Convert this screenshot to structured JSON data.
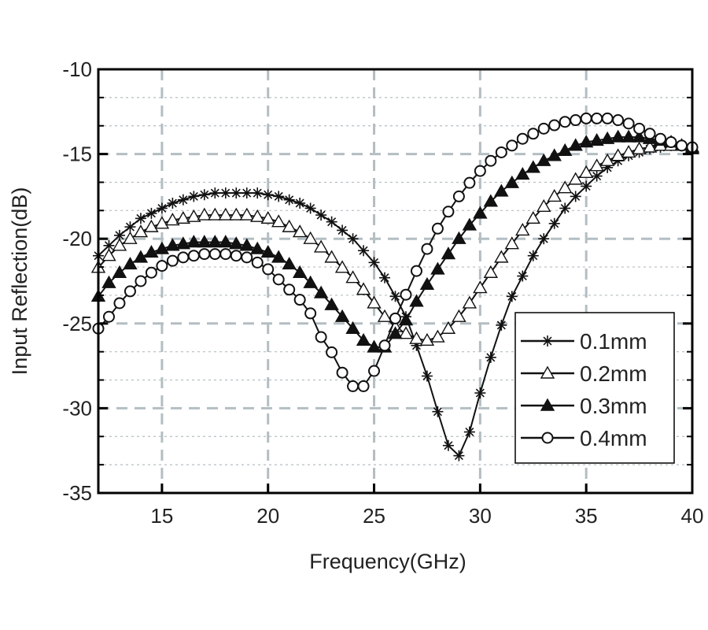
{
  "chart_data": {
    "type": "line",
    "title": "",
    "xlabel": "Frequency(GHz)",
    "ylabel": "Input Reflection(dB)",
    "xlim": [
      12,
      40
    ],
    "ylim": [
      -35,
      -10
    ],
    "xticks": [
      15,
      20,
      25,
      30,
      35,
      40
    ],
    "xtick_labels": [
      "15",
      "20",
      "25",
      "30",
      "35",
      "40"
    ],
    "yticks": [
      -10,
      -15,
      -20,
      -25,
      -30,
      -35
    ],
    "ytick_labels": [
      "-10",
      "-15",
      "-20",
      "-25",
      "-30",
      "-35"
    ],
    "grid": true,
    "legend_position": "bottom-right",
    "x": [
      12,
      12.5,
      13,
      13.5,
      14,
      14.5,
      15,
      15.5,
      16,
      16.5,
      17,
      17.5,
      18,
      18.5,
      19,
      19.5,
      20,
      20.5,
      21,
      21.5,
      22,
      22.5,
      23,
      23.5,
      24,
      24.5,
      25,
      25.5,
      26,
      26.5,
      27,
      27.5,
      28,
      28.5,
      29,
      29.5,
      30,
      30.5,
      31,
      31.5,
      32,
      32.5,
      33,
      33.5,
      34,
      34.5,
      35,
      35.5,
      36,
      36.5,
      37,
      37.5,
      38,
      38.5,
      39,
      39.5,
      40
    ],
    "series": [
      {
        "name": "0.1mm",
        "marker": "asterisk",
        "values": [
          -21.0,
          -20.4,
          -19.8,
          -19.3,
          -18.8,
          -18.5,
          -18.2,
          -17.9,
          -17.7,
          -17.5,
          -17.4,
          -17.3,
          -17.3,
          -17.3,
          -17.3,
          -17.3,
          -17.4,
          -17.5,
          -17.7,
          -17.9,
          -18.2,
          -18.6,
          -19.0,
          -19.5,
          -20.0,
          -20.7,
          -21.4,
          -22.3,
          -23.4,
          -24.6,
          -26.3,
          -28.1,
          -30.2,
          -32.2,
          -32.8,
          -31.4,
          -29.1,
          -27.0,
          -25.1,
          -23.4,
          -22.2,
          -21.0,
          -20.0,
          -19.1,
          -18.2,
          -17.5,
          -16.9,
          -16.3,
          -15.8,
          -15.4,
          -15.1,
          -14.9,
          -14.7,
          -14.6,
          -14.5,
          -14.5,
          -14.6
        ]
      },
      {
        "name": "0.2mm",
        "marker": "open-triangle",
        "values": [
          -21.7,
          -21.0,
          -20.4,
          -20.0,
          -19.6,
          -19.3,
          -19.1,
          -18.9,
          -18.8,
          -18.7,
          -18.6,
          -18.6,
          -18.6,
          -18.6,
          -18.6,
          -18.7,
          -18.8,
          -19.0,
          -19.3,
          -19.6,
          -20.0,
          -20.5,
          -21.1,
          -21.7,
          -22.3,
          -23.0,
          -23.8,
          -24.6,
          -25.2,
          -25.6,
          -25.9,
          -26.0,
          -25.8,
          -25.3,
          -24.6,
          -23.8,
          -22.9,
          -22.0,
          -21.1,
          -20.3,
          -19.5,
          -18.8,
          -18.1,
          -17.5,
          -17.0,
          -16.5,
          -16.1,
          -15.7,
          -15.4,
          -15.1,
          -14.9,
          -14.7,
          -14.6,
          -14.5,
          -14.5,
          -14.5,
          -14.6
        ]
      },
      {
        "name": "0.3mm",
        "marker": "filled-triangle",
        "values": [
          -23.4,
          -22.6,
          -22.0,
          -21.5,
          -21.1,
          -20.8,
          -20.6,
          -20.4,
          -20.3,
          -20.2,
          -20.2,
          -20.2,
          -20.2,
          -20.3,
          -20.4,
          -20.6,
          -20.8,
          -21.1,
          -21.5,
          -22.0,
          -22.6,
          -23.2,
          -23.9,
          -24.6,
          -25.3,
          -26.0,
          -26.4,
          -26.4,
          -25.6,
          -24.8,
          -23.7,
          -22.7,
          -21.8,
          -20.9,
          -20.0,
          -19.2,
          -18.5,
          -17.8,
          -17.2,
          -16.7,
          -16.2,
          -15.8,
          -15.4,
          -15.1,
          -14.8,
          -14.5,
          -14.3,
          -14.2,
          -14.1,
          -14.0,
          -14.0,
          -14.0,
          -14.1,
          -14.2,
          -14.3,
          -14.5,
          -14.7
        ]
      },
      {
        "name": "0.4mm",
        "marker": "open-circle",
        "values": [
          -25.3,
          -24.6,
          -23.8,
          -23.1,
          -22.5,
          -22.0,
          -21.6,
          -21.3,
          -21.1,
          -21.0,
          -20.9,
          -20.9,
          -20.9,
          -21.0,
          -21.1,
          -21.4,
          -21.8,
          -22.4,
          -23.0,
          -23.6,
          -24.4,
          -25.8,
          -26.7,
          -27.9,
          -28.7,
          -28.7,
          -27.8,
          -26.3,
          -24.7,
          -23.3,
          -21.9,
          -20.6,
          -19.4,
          -18.4,
          -17.5,
          -16.7,
          -16.0,
          -15.4,
          -14.9,
          -14.5,
          -14.1,
          -13.8,
          -13.5,
          -13.3,
          -13.1,
          -13.0,
          -12.9,
          -12.9,
          -12.9,
          -13.0,
          -13.2,
          -13.5,
          -13.8,
          -14.1,
          -14.3,
          -14.5,
          -14.6
        ]
      }
    ]
  },
  "colors": {
    "line": "#111111",
    "grid": "#b4bec2",
    "axis": "#000000"
  }
}
